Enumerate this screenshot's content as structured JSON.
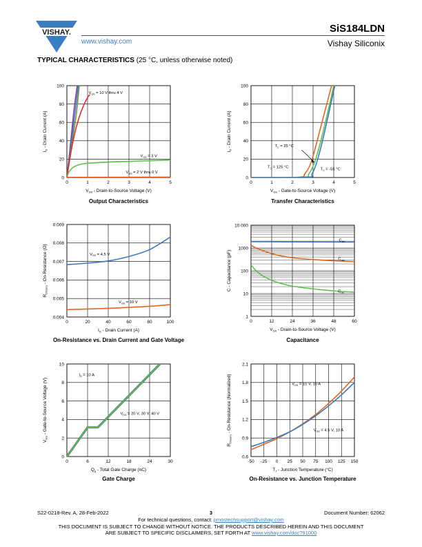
{
  "header": {
    "logo_text": "VISHAY.",
    "website": "www.vishay.com",
    "part_number": "SiS184LDN",
    "vendor": "Vishay Siliconix"
  },
  "section": {
    "title": "TYPICAL CHARACTERISTICS",
    "condition": "(25 °C, unless otherwise noted)"
  },
  "footer": {
    "revision": "S22-0218-Rev. A, 28-Feb-2022",
    "page": "3",
    "doc_number": "Document Number: 62062",
    "contact_prefix": "For technical questions, contact:",
    "contact_email": "pmostechsupport@vishay.com",
    "notice_line1": "THIS DOCUMENT IS SUBJECT TO CHANGE WITHOUT NOTICE. THE PRODUCTS DESCRIBED HEREIN AND THIS DOCUMENT",
    "notice_line2": "ARE SUBJECT TO SPECIFIC DISCLAIMERS, SET FORTH AT",
    "notice_link": "www.vishay.com/doc?91000"
  },
  "colors": {
    "blue": "#3b78c3",
    "orange": "#e4641f",
    "green": "#5bbf4b",
    "purple": "#8a3fa0",
    "red": "#e02b2b",
    "olive": "#7d8f2e"
  },
  "chart_data": [
    {
      "id": "output",
      "type": "line",
      "caption": "Output Characteristics",
      "xlabel": "V_DS - Drain-to-Source Voltage (V)",
      "ylabel": "I_D - Drain Current (A)",
      "xlim": [
        0,
        5
      ],
      "ylim": [
        0,
        100
      ],
      "xticks": [
        0,
        1,
        2,
        3,
        4,
        5
      ],
      "yticks": [
        0,
        20,
        40,
        60,
        80,
        100
      ],
      "grid": true,
      "series": [
        {
          "name": "V_GS = 10 V thru 4 V",
          "color": "#8a3fa0",
          "x": [
            0,
            0.18,
            0.35,
            0.5
          ],
          "y": [
            0,
            38,
            75,
            100
          ]
        },
        {
          "color": "#3b78c3",
          "x": [
            0,
            0.2,
            0.4,
            0.55
          ],
          "y": [
            0,
            36,
            72,
            100
          ]
        },
        {
          "color": "#7d8f2e",
          "x": [
            0,
            0.22,
            0.45,
            0.6
          ],
          "y": [
            0,
            34,
            68,
            100
          ]
        },
        {
          "color": "#e02b2b",
          "x": [
            0,
            0.2,
            0.4,
            0.6,
            0.8,
            1.0,
            1.1
          ],
          "y": [
            0,
            28,
            50,
            66,
            78,
            87,
            90
          ]
        },
        {
          "name": "V_GS = 3 V",
          "color": "#5bbf4b",
          "x": [
            0,
            0.1,
            0.3,
            0.6,
            1,
            2,
            3,
            4,
            5
          ],
          "y": [
            0,
            6,
            11,
            14,
            15.5,
            16.8,
            17.6,
            18.3,
            19
          ]
        },
        {
          "name": "V_GS = 2 V thru 0 V",
          "color": "#e4641f",
          "x": [
            0,
            5
          ],
          "y": [
            0.2,
            0.4
          ]
        }
      ],
      "annotations": [
        {
          "text": "V_GS = 10 V thru 4 V",
          "x": 1.05,
          "y": 91
        },
        {
          "text": "V_GS = 3 V",
          "x": 3.55,
          "y": 22
        },
        {
          "text": "V_GS = 2 V thru 0 V",
          "x": 2.85,
          "y": 4.5
        }
      ]
    },
    {
      "id": "transfer",
      "type": "line",
      "caption": "Transfer Characteristics",
      "xlabel": "V_GS - Gate-to-Source Voltage (V)",
      "ylabel": "I_D - Drain Current (A)",
      "xlim": [
        0,
        5
      ],
      "ylim": [
        0,
        100
      ],
      "xticks": [
        0,
        1,
        2,
        3,
        4,
        5
      ],
      "yticks": [
        0,
        20,
        40,
        60,
        80,
        100
      ],
      "grid": true,
      "series": [
        {
          "name": "T_C = 125 °C",
          "color": "#e4641f",
          "x": [
            0,
            2.3,
            2.6,
            2.9,
            3.2,
            3.5,
            3.9
          ],
          "y": [
            0,
            0.3,
            4,
            16,
            40,
            66,
            100
          ]
        },
        {
          "name": "T_C = 25 °C",
          "color": "#5bbf4b",
          "x": [
            0,
            2.5,
            2.8,
            3.1,
            3.4,
            3.7,
            4.0
          ],
          "y": [
            0,
            0.3,
            4,
            18,
            42,
            70,
            100
          ]
        },
        {
          "name": "T_C = -55 °C",
          "color": "#3b78c3",
          "x": [
            0,
            2.7,
            2.95,
            3.2,
            3.5,
            3.8,
            4.05
          ],
          "y": [
            0,
            0.3,
            4,
            18,
            44,
            74,
            100
          ]
        }
      ],
      "annotations": [
        {
          "text": "T_C = 25 °C",
          "x": 1.15,
          "y": 33
        },
        {
          "text": "T_C = 125 °C",
          "x": 0.8,
          "y": 10
        },
        {
          "text": "T_C = -55 °C",
          "x": 3.35,
          "y": 8
        }
      ]
    },
    {
      "id": "rdson-id",
      "type": "line",
      "caption": "On-Resistance vs. Drain Current and Gate Voltage",
      "xlabel": "I_D - Drain Current (A)",
      "ylabel": "R_DS(on) - On-Resistance (Ω)",
      "xlim": [
        0,
        100
      ],
      "ylim": [
        0.004,
        0.009
      ],
      "xticks": [
        0,
        20,
        40,
        60,
        80,
        100
      ],
      "yticks": [
        0.004,
        0.005,
        0.006,
        0.007,
        0.008,
        0.009
      ],
      "grid": true,
      "series": [
        {
          "name": "V_GS = 4.5 V",
          "color": "#3b78c3",
          "x": [
            0,
            20,
            40,
            60,
            80,
            100
          ],
          "y": [
            0.00683,
            0.00691,
            0.00703,
            0.00727,
            0.00764,
            0.00832
          ]
        },
        {
          "name": "V_GS = 10 V",
          "color": "#e4641f",
          "x": [
            0,
            20,
            40,
            60,
            80,
            100
          ],
          "y": [
            0.0044,
            0.00443,
            0.00447,
            0.00452,
            0.00458,
            0.00467
          ]
        }
      ],
      "annotations": [
        {
          "text": "V_GS = 4.5 V",
          "x": 22,
          "y": 0.00733
        },
        {
          "text": "V_GS = 10 V",
          "x": 50,
          "y": 0.00474
        }
      ]
    },
    {
      "id": "capacitance",
      "type": "line",
      "caption": "Capacitance",
      "xlabel": "V_DS - Drain-to-Source Voltage (V)",
      "ylabel": "C - Capacitance (pF)",
      "xlim": [
        0,
        60
      ],
      "ylim": [
        1,
        10000
      ],
      "log_y": true,
      "xticks": [
        0,
        12,
        24,
        36,
        48,
        60
      ],
      "yticks": [
        1,
        10,
        100,
        1000,
        10000
      ],
      "ytick_labels": [
        "1",
        "10",
        "100",
        "1000",
        "10 000"
      ],
      "grid": true,
      "series": [
        {
          "name": "C_iss",
          "color": "#3b78c3",
          "x": [
            0,
            6,
            12,
            24,
            36,
            48,
            60
          ],
          "y": [
            1900,
            1880,
            1860,
            1840,
            1830,
            1820,
            1810
          ]
        },
        {
          "name": "C_oss",
          "color": "#e4641f",
          "x": [
            0,
            3,
            6,
            12,
            18,
            24,
            36,
            48,
            60
          ],
          "y": [
            1300,
            1000,
            800,
            560,
            440,
            370,
            310,
            275,
            250
          ]
        },
        {
          "name": "C_rss",
          "color": "#5bbf4b",
          "x": [
            0,
            3,
            6,
            12,
            18,
            24,
            36,
            48,
            60
          ],
          "y": [
            180,
            100,
            65,
            38,
            27,
            21,
            16,
            13,
            11.5
          ]
        }
      ],
      "annotations": [
        {
          "text": "C_iss",
          "x": 51,
          "y": 1950
        },
        {
          "text": "C_oss",
          "x": 50.5,
          "y": 290
        },
        {
          "text": "C_rss",
          "x": 50.5,
          "y": 11
        }
      ]
    },
    {
      "id": "gate-charge",
      "type": "line",
      "caption": "Gate Charge",
      "xlabel": "Q_g - Total Gate Charge (nC)",
      "ylabel": "V_GS - Gate-to-Source Voltage (V)",
      "xlim": [
        0,
        30
      ],
      "ylim": [
        0,
        10
      ],
      "xticks": [
        0,
        6,
        12,
        18,
        24,
        30
      ],
      "yticks": [
        0,
        2,
        4,
        6,
        8,
        10
      ],
      "grid": true,
      "series": [
        {
          "name": "V_DS = 20 V",
          "color": "#3b78c3",
          "x": [
            0,
            6,
            9,
            27
          ],
          "y": [
            0,
            3.15,
            3.15,
            10
          ]
        },
        {
          "name": "V_DS = 30 V",
          "color": "#7d8f2e",
          "x": [
            0,
            6,
            9,
            27
          ],
          "y": [
            0,
            3.15,
            3.15,
            10
          ]
        },
        {
          "name": "V_DS = 40 V",
          "color": "#5bbf4b",
          "x": [
            0,
            6,
            9,
            27
          ],
          "y": [
            0,
            3.15,
            3.15,
            10
          ]
        }
      ],
      "annotations": [
        {
          "text": "I_D = 10 A",
          "x": 3.5,
          "y": 8.7
        },
        {
          "text": "V_DS = 20 V, 30 V, 40 V",
          "x": 15.5,
          "y": 4.5
        }
      ]
    },
    {
      "id": "rdson-tj",
      "type": "line",
      "caption": "On-Resistance vs. Junction Temperature",
      "xlabel": "T_J - Junction Temperature (°C)",
      "ylabel": "R_DS(on) - On-Resistance (Normalized)",
      "xlim": [
        -50,
        150
      ],
      "ylim": [
        0.6,
        2.1
      ],
      "xticks": [
        -50,
        -25,
        0,
        25,
        50,
        75,
        100,
        125,
        150
      ],
      "yticks": [
        0.6,
        0.9,
        1.2,
        1.5,
        1.8,
        2.1
      ],
      "grid": true,
      "series": [
        {
          "name": "V_GS = 10 V, 10 A",
          "color": "#e4641f",
          "x": [
            -50,
            -25,
            0,
            25,
            50,
            75,
            100,
            125,
            150
          ],
          "y": [
            0.71,
            0.8,
            0.89,
            1.0,
            1.13,
            1.28,
            1.46,
            1.66,
            1.89
          ]
        },
        {
          "name": "V_GS = 4.5 V, 10 A",
          "color": "#3b78c3",
          "x": [
            -50,
            -25,
            0,
            25,
            50,
            75,
            100,
            125,
            150
          ],
          "y": [
            0.76,
            0.83,
            0.91,
            1.0,
            1.12,
            1.26,
            1.42,
            1.6,
            1.8
          ]
        }
      ],
      "annotations": [
        {
          "text": "V_GS = 10 V, 10 A",
          "x": 29,
          "y": 1.76
        },
        {
          "text": "V_GS = 4.5 V, 10 A",
          "x": 71,
          "y": 1.01
        }
      ]
    }
  ]
}
